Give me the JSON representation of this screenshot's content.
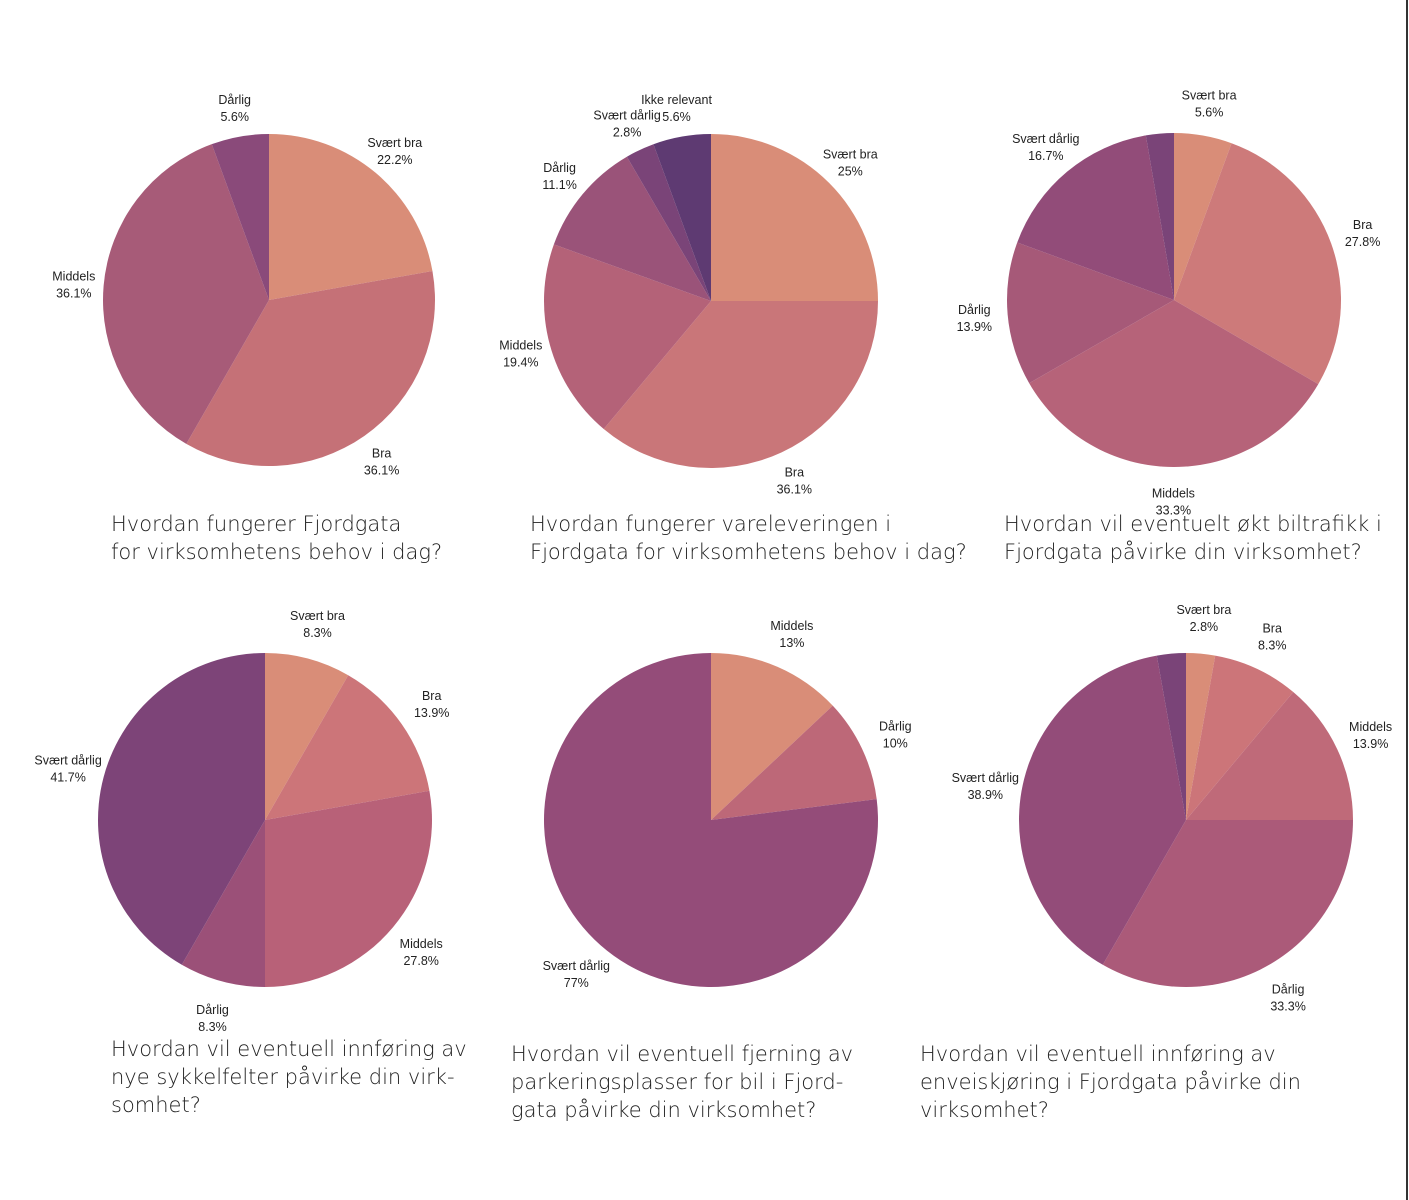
{
  "chart_data": [
    {
      "type": "pie",
      "title": "Hvordan fungerer Fjordgata\nfor virksomhetens behov i dag?",
      "slices": [
        {
          "label": "Svært bra",
          "pct_label": "22.2%",
          "value": 22.2,
          "color": "#d98d78"
        },
        {
          "label": "Bra",
          "pct_label": "36.1%",
          "value": 36.1,
          "color": "#c57177"
        },
        {
          "label": "Middels",
          "pct_label": "36.1%",
          "value": 36.1,
          "color": "#a75b78"
        },
        {
          "label": "Dårlig",
          "pct_label": "5.6%",
          "value": 5.6,
          "color": "#8a4a7a"
        }
      ]
    },
    {
      "type": "pie",
      "title": "Hvordan fungerer vareleveringen i\nFjordgata for virksomhetens behov i dag?",
      "slices": [
        {
          "label": "Svært bra",
          "pct_label": "25%",
          "value": 25,
          "color": "#d98d78"
        },
        {
          "label": "Bra",
          "pct_label": "36.1%",
          "value": 36.1,
          "color": "#c97679"
        },
        {
          "label": "Middels",
          "pct_label": "19.4%",
          "value": 19.4,
          "color": "#b46278"
        },
        {
          "label": "Dårlig",
          "pct_label": "11.1%",
          "value": 11.1,
          "color": "#9a5379"
        },
        {
          "label": "Svært dårlig",
          "pct_label": "2.8%",
          "value": 2.8,
          "color": "#7a4478"
        },
        {
          "label": "Ikke relevant",
          "pct_label": "5.6%",
          "value": 5.6,
          "color": "#5e3a72"
        }
      ]
    },
    {
      "type": "pie",
      "title": "Hvordan vil eventuelt økt biltrafikk i\nFjordgata påvirke din virksomhet?",
      "slices": [
        {
          "label": "Svært bra",
          "pct_label": "5.6%",
          "value": 5.6,
          "color": "#d98d78"
        },
        {
          "label": "Bra",
          "pct_label": "27.8%",
          "value": 27.8,
          "color": "#cd7a7a"
        },
        {
          "label": "Middels",
          "pct_label": "33.3%",
          "value": 33.3,
          "color": "#b66379"
        },
        {
          "label": "Dårlig",
          "pct_label": "13.9%",
          "value": 13.9,
          "color": "#a65978"
        },
        {
          "label": "Svært dårlig",
          "pct_label": "16.7%",
          "value": 16.7,
          "color": "#924c79"
        },
        {
          "label": "",
          "pct_label": "",
          "value": 2.7,
          "color": "#7a4478"
        }
      ]
    },
    {
      "type": "pie",
      "title": "Hvordan vil eventuell innføring av\nnye sykkelfelter påvirke din virk-\nsomhet?",
      "slices": [
        {
          "label": "Svært bra",
          "pct_label": "8.3%",
          "value": 8.3,
          "color": "#d98d78"
        },
        {
          "label": "Bra",
          "pct_label": "13.9%",
          "value": 13.9,
          "color": "#cc7579"
        },
        {
          "label": "Middels",
          "pct_label": "27.8%",
          "value": 27.8,
          "color": "#b86178"
        },
        {
          "label": "Dårlig",
          "pct_label": "8.3%",
          "value": 8.3,
          "color": "#9b5078"
        },
        {
          "label": "Svært dårlig",
          "pct_label": "41.7%",
          "value": 41.7,
          "color": "#7d4478"
        }
      ]
    },
    {
      "type": "pie",
      "title": "Hvordan vil eventuell fjerning av\nparkeringsplasser for bil i Fjord-\ngata påvirke din virksomhet?",
      "slices": [
        {
          "label": "Middels",
          "pct_label": "13%",
          "value": 13,
          "color": "#d98d78"
        },
        {
          "label": "Dårlig",
          "pct_label": "10%",
          "value": 10,
          "color": "#bd6878"
        },
        {
          "label": "Svært dårlig",
          "pct_label": "77%",
          "value": 77,
          "color": "#944c79"
        }
      ]
    },
    {
      "type": "pie",
      "title": "Hvordan vil eventuell innføring av\nenveiskjøring i Fjordgata påvirke din\nvirksomhet?",
      "slices": [
        {
          "label": "Svært bra",
          "pct_label": "2.8%",
          "value": 2.8,
          "color": "#d98d78"
        },
        {
          "label": "Bra",
          "pct_label": "8.3%",
          "value": 8.3,
          "color": "#cc7579"
        },
        {
          "label": "Middels",
          "pct_label": "13.9%",
          "value": 13.9,
          "color": "#bf6a79"
        },
        {
          "label": "Dårlig",
          "pct_label": "33.3%",
          "value": 33.3,
          "color": "#ab5a79"
        },
        {
          "label": "Svært dårlig",
          "pct_label": "38.9%",
          "value": 38.9,
          "color": "#934c79"
        },
        {
          "label": "",
          "pct_label": "",
          "value": 2.8,
          "color": "#7a4478"
        }
      ]
    }
  ]
}
